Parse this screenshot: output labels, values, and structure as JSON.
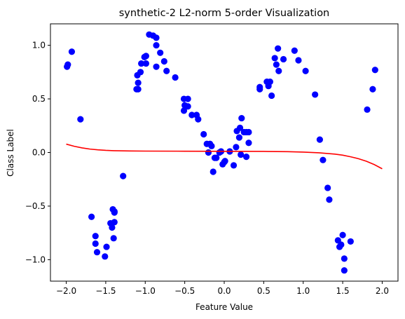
{
  "chart_data": {
    "type": "scatter",
    "title": "synthetic-2 L2-norm 5-order Visualization",
    "xlabel": "Feature Value",
    "ylabel": "Class Label",
    "xlim": [
      -2.2,
      2.2
    ],
    "ylim": [
      -1.2,
      1.2
    ],
    "xticks": [
      -2.0,
      -1.5,
      -1.0,
      -0.5,
      0.0,
      0.5,
      1.0,
      1.5,
      2.0
    ],
    "xtick_labels": [
      "−2.0",
      "−1.5",
      "−1.0",
      "−0.5",
      "0.0",
      "0.5",
      "1.0",
      "1.5",
      "2.0"
    ],
    "yticks": [
      -1.0,
      -0.5,
      0.0,
      0.5,
      1.0
    ],
    "ytick_labels": [
      "−1.0",
      "−0.5",
      "0.0",
      "0.5",
      "1.0"
    ],
    "grid": false,
    "colors": {
      "points": "#0000ff",
      "curve": "#ff0000"
    },
    "series": [
      {
        "kind": "scatter",
        "points": [
          [
            -1.99,
            0.8
          ],
          [
            -1.98,
            0.82
          ],
          [
            -1.93,
            0.94
          ],
          [
            -1.82,
            0.31
          ],
          [
            -1.68,
            -0.6
          ],
          [
            -1.63,
            -0.78
          ],
          [
            -1.63,
            -0.85
          ],
          [
            -1.61,
            -0.93
          ],
          [
            -1.51,
            -0.97
          ],
          [
            -1.49,
            -0.88
          ],
          [
            -1.44,
            -0.66
          ],
          [
            -1.42,
            -0.7
          ],
          [
            -1.41,
            -0.53
          ],
          [
            -1.4,
            -0.8
          ],
          [
            -1.39,
            -0.55
          ],
          [
            -1.39,
            -0.56
          ],
          [
            -1.39,
            -0.65
          ],
          [
            -1.28,
            -0.22
          ],
          [
            -1.11,
            0.59
          ],
          [
            -1.1,
            0.72
          ],
          [
            -1.09,
            0.65
          ],
          [
            -1.09,
            0.59
          ],
          [
            -1.06,
            0.75
          ],
          [
            -1.05,
            0.83
          ],
          [
            -1.01,
            0.89
          ],
          [
            -0.99,
            0.9
          ],
          [
            -0.99,
            0.83
          ],
          [
            -0.95,
            1.1
          ],
          [
            -0.9,
            1.09
          ],
          [
            -0.86,
            1.07
          ],
          [
            -0.86,
            1.0
          ],
          [
            -0.86,
            0.8
          ],
          [
            -0.81,
            0.93
          ],
          [
            -0.76,
            0.85
          ],
          [
            -0.73,
            0.76
          ],
          [
            -0.62,
            0.7
          ],
          [
            -0.51,
            0.5
          ],
          [
            -0.51,
            0.39
          ],
          [
            -0.5,
            0.44
          ],
          [
            -0.46,
            0.5
          ],
          [
            -0.46,
            0.43
          ],
          [
            -0.41,
            0.35
          ],
          [
            -0.35,
            0.35
          ],
          [
            -0.33,
            0.31
          ],
          [
            -0.26,
            0.17
          ],
          [
            -0.22,
            0.08
          ],
          [
            -0.2,
            0.0
          ],
          [
            -0.18,
            0.08
          ],
          [
            -0.16,
            0.06
          ],
          [
            -0.14,
            -0.18
          ],
          [
            -0.12,
            -0.05
          ],
          [
            -0.1,
            -0.05
          ],
          [
            -0.06,
            0.0
          ],
          [
            -0.04,
            0.01
          ],
          [
            -0.02,
            -0.11
          ],
          [
            0.0,
            -0.09
          ],
          [
            0.01,
            -0.08
          ],
          [
            0.07,
            0.01
          ],
          [
            0.12,
            -0.12
          ],
          [
            0.15,
            0.05
          ],
          [
            0.16,
            0.2
          ],
          [
            0.19,
            0.14
          ],
          [
            0.2,
            0.23
          ],
          [
            0.21,
            -0.02
          ],
          [
            0.22,
            0.32
          ],
          [
            0.25,
            0.19
          ],
          [
            0.28,
            0.19
          ],
          [
            0.28,
            -0.04
          ],
          [
            0.31,
            0.19
          ],
          [
            0.31,
            0.09
          ],
          [
            0.45,
            0.61
          ],
          [
            0.45,
            0.59
          ],
          [
            0.54,
            0.66
          ],
          [
            0.56,
            0.62
          ],
          [
            0.58,
            0.66
          ],
          [
            0.6,
            0.53
          ],
          [
            0.64,
            0.88
          ],
          [
            0.66,
            0.82
          ],
          [
            0.68,
            0.97
          ],
          [
            0.69,
            0.76
          ],
          [
            0.75,
            0.87
          ],
          [
            0.89,
            0.95
          ],
          [
            0.94,
            0.86
          ],
          [
            1.03,
            0.76
          ],
          [
            1.15,
            0.54
          ],
          [
            1.21,
            0.12
          ],
          [
            1.25,
            -0.07
          ],
          [
            1.31,
            -0.33
          ],
          [
            1.33,
            -0.44
          ],
          [
            1.44,
            -0.82
          ],
          [
            1.46,
            -0.88
          ],
          [
            1.48,
            -0.86
          ],
          [
            1.5,
            -0.77
          ],
          [
            1.52,
            -0.99
          ],
          [
            1.52,
            -1.1
          ],
          [
            1.6,
            -0.83
          ],
          [
            1.81,
            0.4
          ],
          [
            1.88,
            0.59
          ],
          [
            1.91,
            0.77
          ]
        ]
      },
      {
        "kind": "line",
        "points": [
          [
            -2.0,
            0.078
          ],
          [
            -1.9,
            0.058
          ],
          [
            -1.8,
            0.043
          ],
          [
            -1.7,
            0.032
          ],
          [
            -1.6,
            0.025
          ],
          [
            -1.5,
            0.02
          ],
          [
            -1.4,
            0.017
          ],
          [
            -1.2,
            0.014
          ],
          [
            -1.0,
            0.013
          ],
          [
            -0.5,
            0.012
          ],
          [
            0.0,
            0.011
          ],
          [
            0.5,
            0.01
          ],
          [
            0.8,
            0.008
          ],
          [
            1.0,
            0.004
          ],
          [
            1.2,
            -0.003
          ],
          [
            1.4,
            -0.015
          ],
          [
            1.5,
            -0.025
          ],
          [
            1.6,
            -0.04
          ],
          [
            1.7,
            -0.058
          ],
          [
            1.8,
            -0.082
          ],
          [
            1.9,
            -0.113
          ],
          [
            2.0,
            -0.152
          ]
        ]
      }
    ]
  }
}
